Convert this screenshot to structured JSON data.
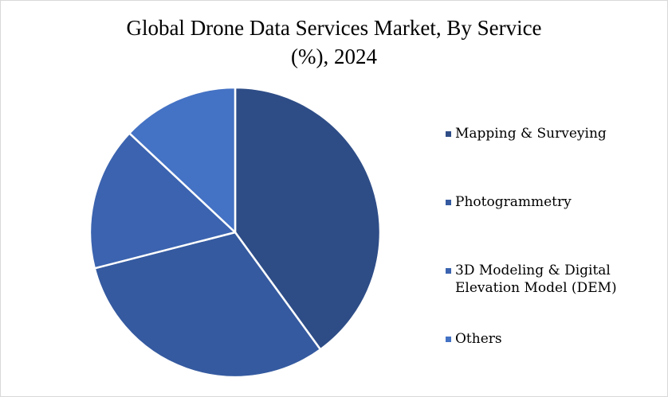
{
  "chart_data": {
    "type": "pie",
    "title_lines": [
      "Global Drone Data Services Market, By Service",
      "(%), 2024"
    ],
    "categories": [
      "Mapping & Surveying",
      "Photogrammetry",
      "3D Modeling & Digital\nElevation Model (DEM)",
      "Others"
    ],
    "values": [
      40,
      31,
      16,
      13
    ],
    "unit": "%",
    "colors": [
      "#2e4d87",
      "#355aa0",
      "#3b63af",
      "#4472c4"
    ],
    "legend_position": "right"
  }
}
